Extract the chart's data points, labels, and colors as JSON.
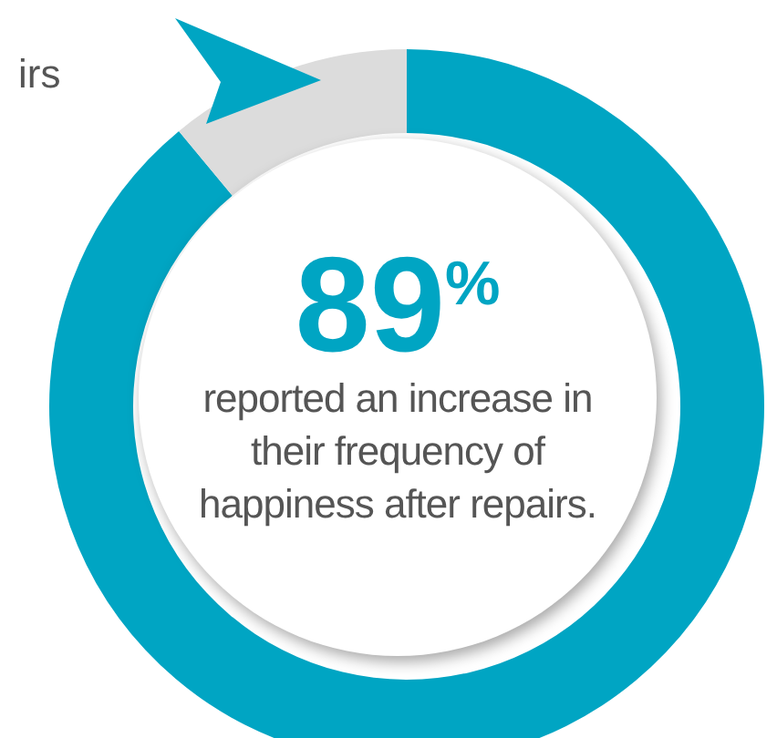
{
  "chart_data": {
    "type": "donut",
    "categories": [
      null,
      null
    ],
    "values": [
      89,
      11
    ],
    "colors": [
      "#00a5c3",
      "#dcdcdc"
    ],
    "annotations": [
      "89$^{%}$",
      "reported an increase in their frequency of happiness after repairs.",
      "irs"
    ]
  }
}
